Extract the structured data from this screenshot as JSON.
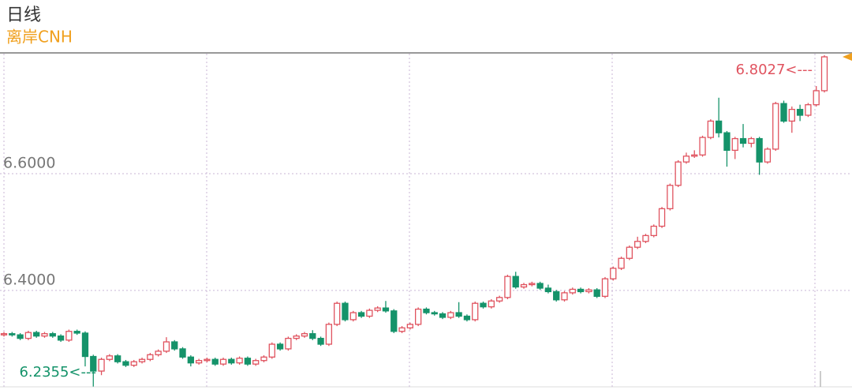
{
  "chart_data": {
    "type": "candlestick",
    "title": "日线",
    "subtitle": "离岸CNH",
    "ylim": [
      6.235,
      6.8054
    ],
    "yticks": [
      {
        "value": 6.6,
        "label": "6.6000"
      },
      {
        "value": 6.4,
        "label": "6.4000"
      }
    ],
    "grid": true,
    "up_color": "#e0535f",
    "down_color": "#15936a",
    "annotations": [
      {
        "label": "6.8027<---",
        "value": 6.8027,
        "color": "#e0535f"
      },
      {
        "label": "6.2355<---",
        "value": 6.2355,
        "color": "#15936a"
      }
    ],
    "candles": [
      [
        6.324,
        6.329,
        6.321,
        6.326
      ],
      [
        6.326,
        6.329,
        6.321,
        6.324
      ],
      [
        6.324,
        6.327,
        6.315,
        6.318
      ],
      [
        6.318,
        6.331,
        6.315,
        6.328
      ],
      [
        6.328,
        6.331,
        6.319,
        6.322
      ],
      [
        6.322,
        6.329,
        6.319,
        6.326
      ],
      [
        6.326,
        6.329,
        6.319,
        6.322
      ],
      [
        6.322,
        6.325,
        6.312,
        6.315
      ],
      [
        6.315,
        6.333,
        6.312,
        6.33
      ],
      [
        6.33,
        6.333,
        6.324,
        6.327
      ],
      [
        6.327,
        6.33,
        6.27,
        6.287
      ],
      [
        6.287,
        6.29,
        6.2355,
        6.262
      ],
      [
        6.262,
        6.285,
        6.255,
        6.282
      ],
      [
        6.282,
        6.291,
        6.279,
        6.288
      ],
      [
        6.288,
        6.291,
        6.275,
        6.278
      ],
      [
        6.278,
        6.281,
        6.269,
        6.272
      ],
      [
        6.272,
        6.281,
        6.269,
        6.278
      ],
      [
        6.278,
        6.285,
        6.275,
        6.282
      ],
      [
        6.282,
        6.293,
        6.279,
        6.29
      ],
      [
        6.29,
        6.299,
        6.287,
        6.296
      ],
      [
        6.296,
        6.32,
        6.293,
        6.312
      ],
      [
        6.312,
        6.315,
        6.297,
        6.3
      ],
      [
        6.3,
        6.303,
        6.283,
        6.286
      ],
      [
        6.286,
        6.289,
        6.27,
        6.276
      ],
      [
        6.276,
        6.283,
        6.273,
        6.28
      ],
      [
        6.28,
        6.285,
        6.277,
        6.282
      ],
      [
        6.282,
        6.285,
        6.271,
        6.274
      ],
      [
        6.274,
        6.285,
        6.271,
        6.282
      ],
      [
        6.282,
        6.285,
        6.273,
        6.276
      ],
      [
        6.276,
        6.287,
        6.273,
        6.284
      ],
      [
        6.284,
        6.287,
        6.271,
        6.274
      ],
      [
        6.274,
        6.283,
        6.271,
        6.28
      ],
      [
        6.28,
        6.289,
        6.277,
        6.286
      ],
      [
        6.286,
        6.311,
        6.283,
        6.308
      ],
      [
        6.308,
        6.311,
        6.297,
        6.3
      ],
      [
        6.3,
        6.321,
        6.297,
        6.318
      ],
      [
        6.318,
        6.325,
        6.315,
        6.322
      ],
      [
        6.322,
        6.329,
        6.319,
        6.326
      ],
      [
        6.326,
        6.332,
        6.315,
        6.318
      ],
      [
        6.318,
        6.321,
        6.305,
        6.308
      ],
      [
        6.308,
        6.345,
        6.305,
        6.342
      ],
      [
        6.342,
        6.381,
        6.339,
        6.378
      ],
      [
        6.378,
        6.381,
        6.347,
        6.35
      ],
      [
        6.35,
        6.365,
        6.347,
        6.362
      ],
      [
        6.362,
        6.365,
        6.353,
        6.356
      ],
      [
        6.356,
        6.369,
        6.353,
        6.366
      ],
      [
        6.366,
        6.373,
        6.363,
        6.37
      ],
      [
        6.37,
        6.382,
        6.362,
        6.365
      ],
      [
        6.365,
        6.368,
        6.327,
        6.33
      ],
      [
        6.33,
        6.339,
        6.327,
        6.336
      ],
      [
        6.336,
        6.345,
        6.333,
        6.342
      ],
      [
        6.342,
        6.371,
        6.339,
        6.368
      ],
      [
        6.368,
        6.371,
        6.359,
        6.362
      ],
      [
        6.362,
        6.365,
        6.357,
        6.36
      ],
      [
        6.36,
        6.363,
        6.351,
        6.354
      ],
      [
        6.354,
        6.365,
        6.351,
        6.362
      ],
      [
        6.362,
        6.38,
        6.353,
        6.356
      ],
      [
        6.356,
        6.359,
        6.347,
        6.35
      ],
      [
        6.35,
        6.381,
        6.347,
        6.378
      ],
      [
        6.378,
        6.381,
        6.369,
        6.372
      ],
      [
        6.372,
        6.385,
        6.369,
        6.382
      ],
      [
        6.382,
        6.391,
        6.379,
        6.388
      ],
      [
        6.388,
        6.427,
        6.385,
        6.424
      ],
      [
        6.424,
        6.432,
        6.403,
        6.406
      ],
      [
        6.406,
        6.413,
        6.403,
        6.41
      ],
      [
        6.41,
        6.415,
        6.407,
        6.412
      ],
      [
        6.412,
        6.415,
        6.401,
        6.404
      ],
      [
        6.404,
        6.41,
        6.395,
        6.398
      ],
      [
        6.398,
        6.401,
        6.381,
        6.384
      ],
      [
        6.384,
        6.399,
        6.381,
        6.396
      ],
      [
        6.396,
        6.405,
        6.393,
        6.402
      ],
      [
        6.402,
        6.405,
        6.395,
        6.398
      ],
      [
        6.398,
        6.404,
        6.395,
        6.401
      ],
      [
        6.401,
        6.404,
        6.387,
        6.39
      ],
      [
        6.39,
        6.423,
        6.387,
        6.42
      ],
      [
        6.42,
        6.441,
        6.417,
        6.438
      ],
      [
        6.438,
        6.458,
        6.435,
        6.455
      ],
      [
        6.455,
        6.477,
        6.452,
        6.474
      ],
      [
        6.474,
        6.492,
        6.471,
        6.484
      ],
      [
        6.484,
        6.497,
        6.481,
        6.494
      ],
      [
        6.494,
        6.513,
        6.491,
        6.51
      ],
      [
        6.51,
        6.543,
        6.507,
        6.54
      ],
      [
        6.54,
        6.583,
        6.537,
        6.58
      ],
      [
        6.58,
        6.623,
        6.577,
        6.62
      ],
      [
        6.62,
        6.636,
        6.617,
        6.63
      ],
      [
        6.63,
        6.64,
        6.627,
        6.632
      ],
      [
        6.632,
        6.665,
        6.629,
        6.662
      ],
      [
        6.662,
        6.693,
        6.659,
        6.69
      ],
      [
        6.69,
        6.73,
        6.662,
        6.67
      ],
      [
        6.67,
        6.673,
        6.612,
        6.64
      ],
      [
        6.64,
        6.663,
        6.625,
        6.66
      ],
      [
        6.66,
        6.685,
        6.645,
        6.652
      ],
      [
        6.652,
        6.663,
        6.645,
        6.66
      ],
      [
        6.66,
        6.663,
        6.598,
        6.62
      ],
      [
        6.62,
        6.645,
        6.617,
        6.642
      ],
      [
        6.642,
        6.723,
        6.639,
        6.72
      ],
      [
        6.72,
        6.725,
        6.687,
        6.69
      ],
      [
        6.69,
        6.715,
        6.67,
        6.71
      ],
      [
        6.71,
        6.718,
        6.69,
        6.7
      ],
      [
        6.7,
        6.721,
        6.697,
        6.718
      ],
      [
        6.718,
        6.75,
        6.715,
        6.742
      ],
      [
        6.742,
        6.8027,
        6.739,
        6.8
      ]
    ]
  }
}
